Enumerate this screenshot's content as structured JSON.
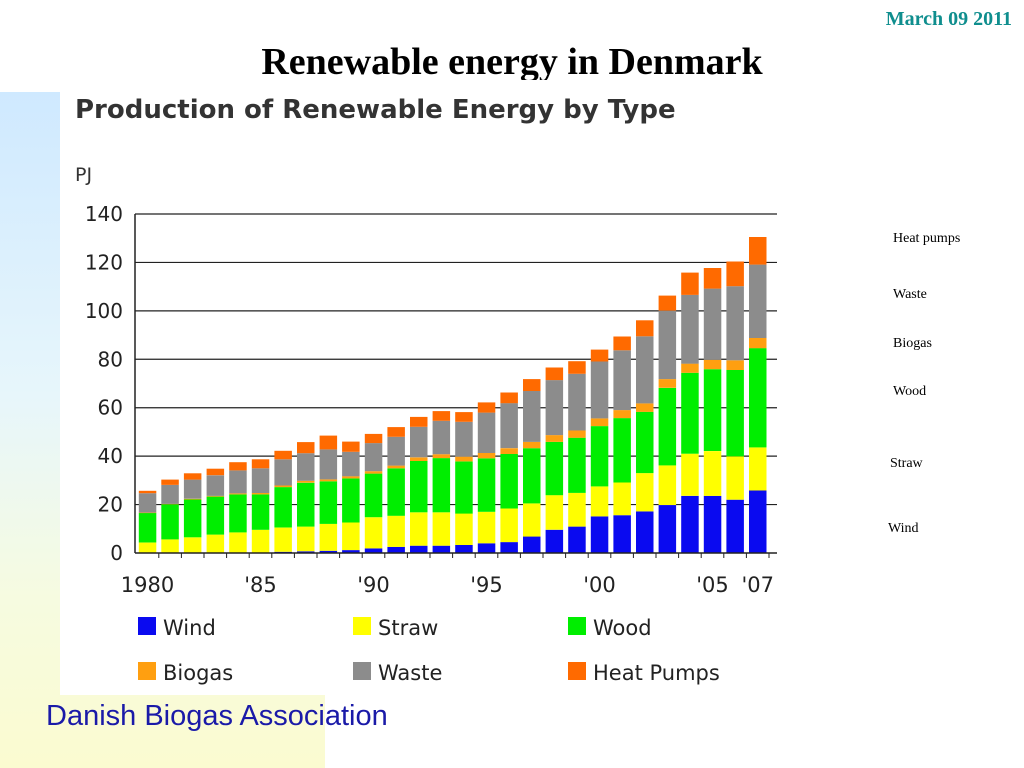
{
  "slide": {
    "date": "March 09 2011",
    "title": "Renewable energy in Denmark",
    "footer": "Danish Biogas Association",
    "side_labels": [
      "Heat pumps",
      "Waste",
      "Biogas",
      "Wood",
      "Straw",
      "Wind"
    ]
  },
  "chart_data": {
    "type": "bar",
    "stacked": true,
    "title": "Production of Renewable Energy by Type",
    "ylabel": "PJ",
    "xlabel": "",
    "ylim": [
      0,
      140
    ],
    "yticks": [
      0,
      20,
      40,
      60,
      80,
      100,
      120,
      140
    ],
    "xtick_labels": [
      {
        "year": 1980,
        "label": "1980"
      },
      {
        "year": 1985,
        "label": "'85"
      },
      {
        "year": 1990,
        "label": "'90"
      },
      {
        "year": 1995,
        "label": "'95"
      },
      {
        "year": 2000,
        "label": "'00"
      },
      {
        "year": 2005,
        "label": "'05"
      },
      {
        "year": 2007,
        "label": "'07"
      }
    ],
    "grid": "horizontal",
    "legend_position": "bottom",
    "categories": [
      1980,
      1981,
      1982,
      1983,
      1984,
      1985,
      1986,
      1987,
      1988,
      1989,
      1990,
      1991,
      1992,
      1993,
      1994,
      1995,
      1996,
      1997,
      1998,
      1999,
      2000,
      2001,
      2002,
      2003,
      2004,
      2005,
      2006,
      2007
    ],
    "series": [
      {
        "name": "Wind",
        "color": "#0a0af0",
        "values": [
          0,
          0,
          0,
          0,
          0,
          0.2,
          0.5,
          0.7,
          0.9,
          1.2,
          1.9,
          2.5,
          3.0,
          3.0,
          3.3,
          4.0,
          4.5,
          6.8,
          9.6,
          10.9,
          15.1,
          15.6,
          17.2,
          19.8,
          23.6,
          23.6,
          22.0,
          25.8
        ]
      },
      {
        "name": "Straw",
        "color": "#ffff00",
        "values": [
          4.3,
          5.6,
          6.5,
          7.6,
          8.5,
          9.4,
          10.0,
          10.2,
          11.1,
          11.4,
          12.9,
          12.9,
          13.8,
          13.8,
          13.0,
          13.0,
          13.9,
          13.7,
          14.3,
          13.9,
          12.4,
          13.5,
          15.8,
          16.4,
          17.4,
          18.5,
          17.9,
          17.8
        ]
      },
      {
        "name": "Wood",
        "color": "#00ee00",
        "values": [
          12.2,
          14.5,
          15.6,
          15.7,
          15.7,
          14.6,
          16.7,
          18.1,
          17.6,
          18.2,
          18.0,
          19.6,
          21.2,
          22.4,
          21.5,
          22.1,
          22.5,
          22.8,
          22.0,
          22.8,
          24.9,
          26.6,
          25.3,
          32.0,
          33.4,
          33.8,
          35.7,
          41.0
        ]
      },
      {
        "name": "Biogas",
        "color": "#ff9f10",
        "values": [
          0.2,
          0.2,
          0.3,
          0.3,
          0.4,
          0.6,
          0.7,
          0.8,
          0.8,
          0.9,
          1.0,
          1.1,
          1.5,
          1.6,
          2.0,
          2.2,
          2.4,
          2.6,
          2.8,
          3.0,
          3.2,
          3.3,
          3.5,
          3.6,
          3.8,
          3.9,
          4.0,
          4.2
        ]
      },
      {
        "name": "Waste",
        "color": "#8c8c8c",
        "values": [
          8.0,
          7.8,
          7.9,
          8.5,
          9.5,
          10.2,
          10.8,
          11.4,
          12.4,
          10.1,
          11.6,
          11.9,
          12.6,
          13.8,
          14.4,
          16.7,
          18.6,
          21.0,
          22.7,
          23.4,
          23.5,
          24.7,
          27.7,
          28.3,
          28.4,
          29.4,
          30.6,
          30.3
        ]
      },
      {
        "name": "Heat Pumps",
        "color": "#ff6a00",
        "values": [
          1.0,
          2.2,
          2.6,
          2.7,
          3.4,
          3.7,
          3.5,
          4.6,
          5.7,
          4.2,
          3.8,
          4.0,
          4.1,
          4.0,
          4.0,
          4.2,
          4.4,
          4.9,
          5.2,
          5.2,
          4.9,
          5.7,
          6.6,
          6.2,
          9.2,
          8.5,
          10.2,
          11.4
        ]
      }
    ]
  }
}
